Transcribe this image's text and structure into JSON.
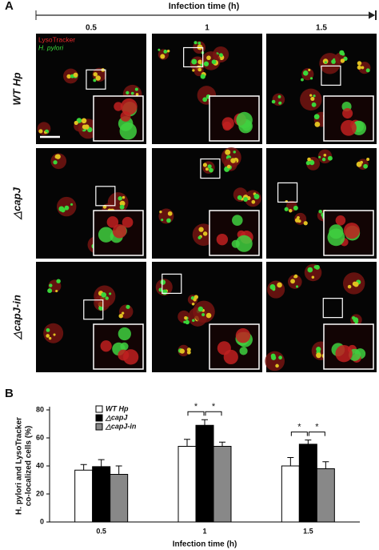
{
  "panel_a": {
    "label": "A",
    "title": "Infection time (h)",
    "times": [
      "0.5",
      "1",
      "1.5"
    ],
    "rows": [
      "WT Hp",
      "△capJ",
      "△capJ-in"
    ],
    "legend": [
      {
        "name": "LysoTracker",
        "color": "#e8282a"
      },
      {
        "name": "H. pylori",
        "color": "#3ad63a"
      }
    ]
  },
  "panel_b": {
    "label": "B"
  },
  "chart_data": {
    "type": "bar",
    "xlabel": "Infection time (h)",
    "ylabel": [
      "H. pylori and LysoTracker",
      "co-localized cells (%)"
    ],
    "categories": [
      "0.5",
      "1",
      "1.5"
    ],
    "series": [
      {
        "name": "WT Hp",
        "color": "#ffffff",
        "values": [
          37,
          54,
          40
        ],
        "errors": [
          4,
          5,
          6
        ]
      },
      {
        "name": "△capJ",
        "color": "#000000",
        "values": [
          39.5,
          69,
          55.5
        ],
        "errors": [
          5,
          4,
          3
        ]
      },
      {
        "name": "△capJ-in",
        "color": "#888888",
        "values": [
          34,
          54,
          38
        ],
        "errors": [
          6,
          3,
          5
        ]
      }
    ],
    "ylim": [
      0,
      80
    ],
    "yticks": [
      0,
      20,
      40,
      60,
      80
    ],
    "legend": "upper-left",
    "annotations": [
      "*",
      "*",
      "*",
      "*"
    ]
  }
}
